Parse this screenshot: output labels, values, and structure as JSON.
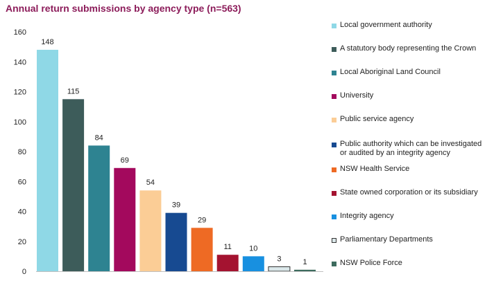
{
  "chart_data": {
    "type": "bar",
    "title": "Annual return submissions by agency type (n=563)",
    "xlabel": "",
    "ylabel": "",
    "ylim": [
      0,
      160
    ],
    "yticks": [
      0,
      20,
      40,
      60,
      80,
      100,
      120,
      140,
      160
    ],
    "grid": false,
    "legend_position": "right",
    "categories": [
      "Local government authority",
      "A statutory body representing the Crown",
      "Local Aboriginal Land Council",
      "University",
      "Public service agency",
      "Public authority which can be investigated or audited by an integrity agency",
      "NSW Health Service",
      "State owned corporation or its subsidiary",
      "Integrity agency",
      "Parliamentary Departments",
      "NSW Police Force"
    ],
    "values": [
      148,
      115,
      84,
      69,
      54,
      39,
      29,
      11,
      10,
      3,
      1
    ],
    "colors": [
      "#8fd8e6",
      "#3d5c5a",
      "#2e8391",
      "#a3095d",
      "#fbcd96",
      "#174a91",
      "#ee6a24",
      "#a41330",
      "#1890e0",
      "#dbe8ea",
      "#3d6b5e"
    ],
    "legend_lines": [
      [
        "Local government authority"
      ],
      [
        "A statutory body representing the Crown"
      ],
      [
        "Local Aboriginal Land Council"
      ],
      [
        "University"
      ],
      [
        "Public service agency"
      ],
      [
        "Public authority which can be investigated",
        "or audited by an integrity agency"
      ],
      [
        "NSW Health Service"
      ],
      [
        "State owned corporation or its subsidiary"
      ],
      [
        "Integrity agency"
      ],
      [
        "Parliamentary Departments"
      ],
      [
        "NSW Police Force"
      ]
    ]
  }
}
